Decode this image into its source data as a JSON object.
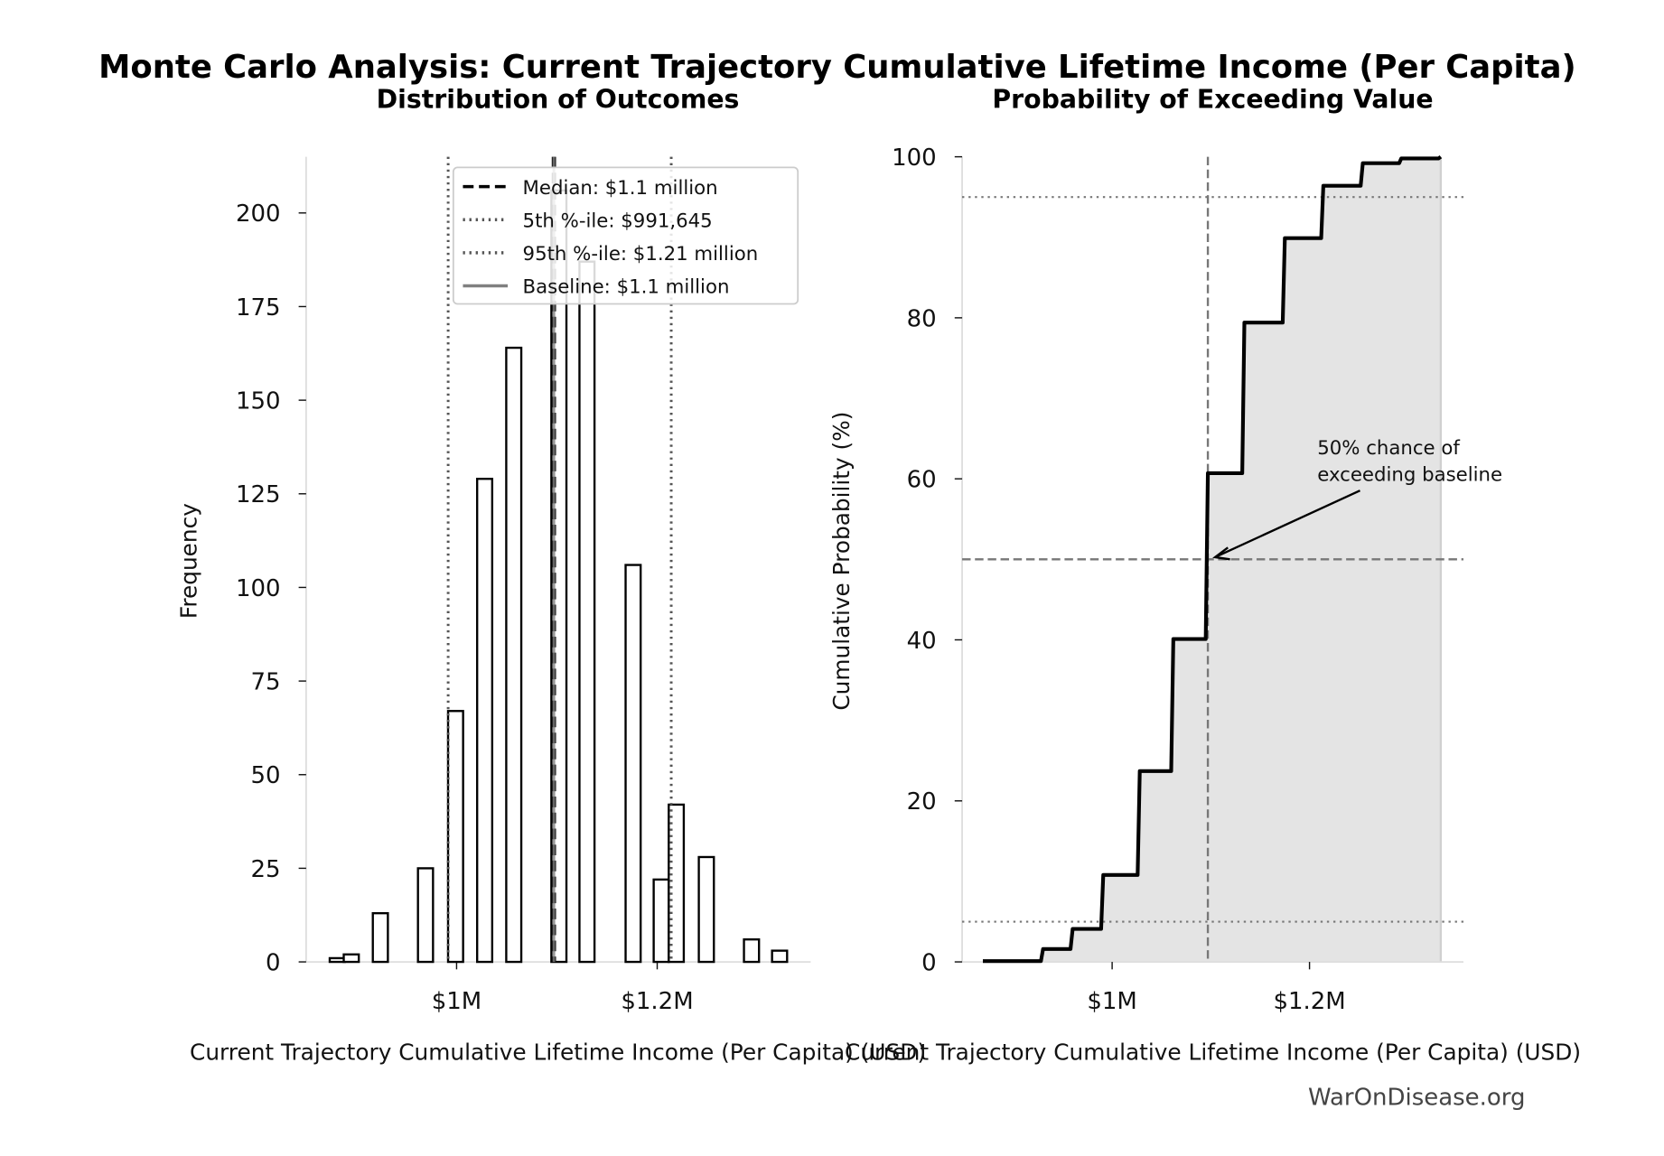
{
  "title": "Monte Carlo Analysis: Current Trajectory Cumulative Lifetime Income (Per Capita)",
  "watermark": "WarOnDisease.org",
  "colors": {
    "bar_edge": "#000000",
    "bar_fill": "#ffffff",
    "median": "#000000",
    "percentile": "#555555",
    "baseline": "#808080",
    "cdf_line": "#000000",
    "cdf_fill": "#e4e4e4"
  },
  "chart_data": [
    {
      "type": "bar",
      "title": "Distribution of Outcomes",
      "xlabel": "Current Trajectory Cumulative Lifetime Income (Per Capita) (USD)",
      "ylabel": "Frequency",
      "x_unit": "USD (millions)",
      "xlim": [
        0.85,
        1.353
      ],
      "ylim": [
        0,
        215
      ],
      "xticks": [
        {
          "value": 1.0,
          "label": "$1M"
        },
        {
          "value": 1.2,
          "label": "$1.2M"
        }
      ],
      "yticks": [
        0,
        25,
        50,
        75,
        100,
        125,
        150,
        175,
        200
      ],
      "bin_width": 0.015,
      "x": [
        0.881,
        0.895,
        0.924,
        0.969,
        0.999,
        1.028,
        1.057,
        1.102,
        1.13,
        1.176,
        1.204,
        1.219,
        1.249,
        1.294,
        1.322
      ],
      "values": [
        1,
        2,
        13,
        25,
        67,
        129,
        164,
        206,
        187,
        106,
        22,
        42,
        28,
        6,
        3
      ],
      "vlines": [
        {
          "label": "Median: $1.1 million",
          "x": 1.097,
          "style": "dashed",
          "color": "#000000"
        },
        {
          "label": "5th %-ile: $991,645",
          "x": 0.9916,
          "style": "dotted",
          "color": "#555555"
        },
        {
          "label": "95th %-ile: $1.21 million",
          "x": 1.214,
          "style": "dotted",
          "color": "#555555"
        },
        {
          "label": "Baseline: $1.1 million",
          "x": 1.097,
          "style": "solid",
          "color": "#808080"
        }
      ],
      "legend": "top-right",
      "grid": false
    },
    {
      "type": "line",
      "title": "Probability of Exceeding Value",
      "xlabel": "Current Trajectory Cumulative Lifetime Income (Per Capita) (USD)",
      "ylabel": "Cumulative Probability (%)",
      "x_unit": "USD (millions)",
      "xlim": [
        0.848,
        1.356
      ],
      "ylim": [
        0,
        100
      ],
      "xticks": [
        {
          "value": 1.0,
          "label": "$1M"
        },
        {
          "value": 1.2,
          "label": "$1.2M"
        }
      ],
      "yticks": [
        0,
        20,
        40,
        60,
        80,
        100
      ],
      "step_x": [
        0.869,
        0.93,
        0.96,
        0.991,
        1.028,
        1.062,
        1.097,
        1.134,
        1.175,
        1.214,
        1.254,
        1.293,
        1.333
      ],
      "step_y": [
        0.1,
        1.6,
        4.1,
        10.8,
        23.7,
        40.1,
        60.7,
        79.4,
        89.9,
        96.4,
        99.2,
        99.8,
        100
      ],
      "hlines": [
        {
          "y": 95,
          "style": "dotted"
        },
        {
          "y": 50,
          "style": "dashed"
        },
        {
          "y": 5,
          "style": "dotted"
        }
      ],
      "vline": {
        "x": 1.097,
        "style": "dashed"
      },
      "annotation": {
        "lines": [
          "50% chance of",
          "exceeding baseline"
        ],
        "point": [
          1.1,
          50
        ]
      },
      "grid": false
    }
  ]
}
